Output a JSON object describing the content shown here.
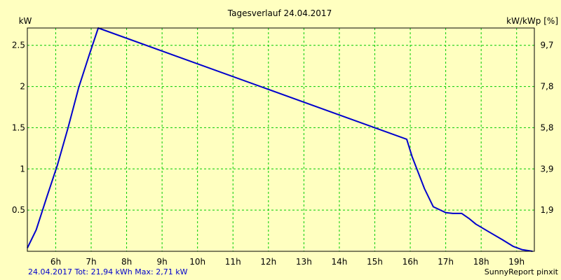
{
  "chart_data": {
    "type": "line",
    "title": "Tagesverlauf 24.04.2017",
    "ylabel": "kW",
    "y2label": "kW/kWp [%]",
    "ylim": [
      0,
      2.71
    ],
    "xlim": [
      5.2,
      19.5
    ],
    "grid": true,
    "x_ticks": [
      6,
      7,
      8,
      9,
      10,
      11,
      12,
      13,
      14,
      15,
      16,
      17,
      18,
      19
    ],
    "x_tick_labels": [
      "6h",
      "7h",
      "8h",
      "9h",
      "10h",
      "11h",
      "12h",
      "13h",
      "14h",
      "15h",
      "16h",
      "17h",
      "18h",
      "19h"
    ],
    "y_ticks": [
      0.5,
      1,
      1.5,
      2,
      2.5
    ],
    "y_tick_labels": [
      "0.5",
      "1",
      "1.5",
      "2",
      "2.5"
    ],
    "y2_tick_labels": [
      "1,9",
      "3,9",
      "5,8",
      "7,8",
      "9,7"
    ],
    "line_color": "#0000cc",
    "grid_color": "#00cc00",
    "series": [
      {
        "x": [
          5.2,
          5.45,
          5.75,
          6.05,
          6.35,
          6.65,
          6.95,
          7.2,
          15.9,
          16.05,
          16.4,
          16.65,
          16.85,
          17.0,
          17.2,
          17.45,
          17.65,
          17.85,
          18.2,
          18.6,
          18.9,
          19.15,
          19.45
        ],
        "y": [
          0.04,
          0.26,
          0.66,
          1.05,
          1.5,
          1.99,
          2.39,
          2.71,
          1.36,
          1.15,
          0.76,
          0.54,
          0.5,
          0.47,
          0.46,
          0.46,
          0.4,
          0.33,
          0.24,
          0.14,
          0.06,
          0.02,
          0.0
        ]
      }
    ]
  },
  "footer": {
    "left": "24.04.2017 Tot: 21,94 kWh Max: 2,71 kW",
    "right": "SunnyReport pinxit"
  }
}
